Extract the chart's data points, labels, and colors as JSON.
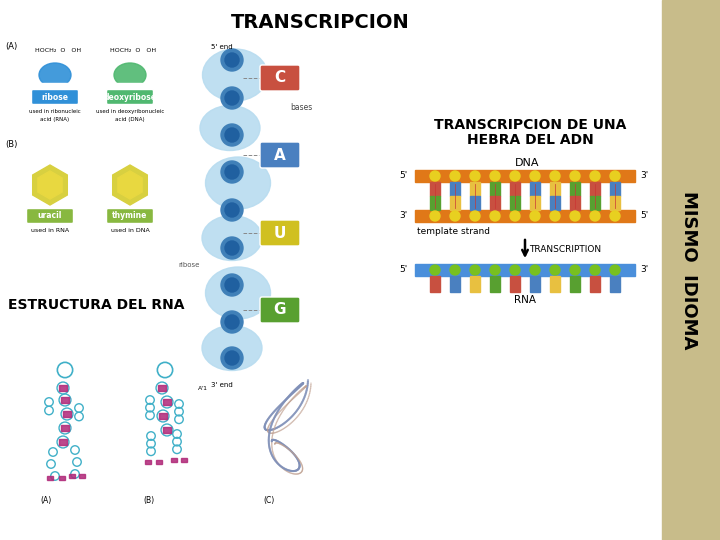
{
  "title": "TRANSCRIPCION",
  "title2_line1": "TRANSCRIPCION DE UNA",
  "title2_line2": "HEBRA DEL ADN",
  "label_estructura": "ESTRUCTURA DEL RNA",
  "label_mismo": "MISMO  IDIOMA",
  "label_dna": "DNA",
  "label_rna": "RNA",
  "label_template": "template strand",
  "label_transcription": "TRANSCRIPTION",
  "bg_color": "#ffffff",
  "sidebar_color": "#c8bc8a",
  "orange_strand": "#e07818",
  "blue_strand": "#4a8fdb",
  "yellow_circle": "#e8d020",
  "green_circle": "#78c020",
  "wave_blue": "#b8dcf0",
  "C_color": "#c85040",
  "A_color": "#4a80c0",
  "U_color": "#d0c020",
  "G_color": "#58a030",
  "ribose_color": "#3090d8",
  "deoxyribose_color": "#50b870",
  "uracil_color": "#88b840",
  "thymine_color": "#88b840",
  "pentagon_dark": "#2060a0",
  "pentagon_mid": "#4080b8",
  "tRNA_cyan": "#40b0c8",
  "tRNA_pink": "#b02878",
  "base_top_colors": [
    "#c85040",
    "#4a80c0",
    "#e8c040",
    "#58a030",
    "#c85040",
    "#4a80c0",
    "#e8c040",
    "#58a030",
    "#c85040",
    "#4a80c0"
  ],
  "base_bot_colors": [
    "#58a030",
    "#e8c040",
    "#4a80c0",
    "#c85040",
    "#58a030",
    "#e8c040",
    "#4a80c0",
    "#c85040",
    "#58a030",
    "#e8c040"
  ],
  "rna_base_colors": [
    "#c85040",
    "#4a80c0",
    "#e8c040",
    "#58a030",
    "#c85040",
    "#4a80c0",
    "#e8c040",
    "#58a030",
    "#c85040",
    "#4a80c0"
  ]
}
